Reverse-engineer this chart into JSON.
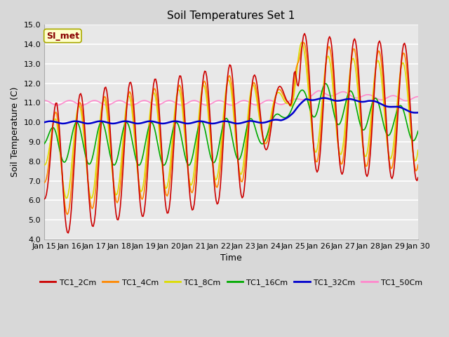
{
  "title": "Soil Temperatures Set 1",
  "xlabel": "Time",
  "ylabel": "Soil Temperature (C)",
  "ylim": [
    4.0,
    15.0
  ],
  "yticks": [
    4.0,
    5.0,
    6.0,
    7.0,
    8.0,
    9.0,
    10.0,
    11.0,
    12.0,
    13.0,
    14.0,
    15.0
  ],
  "xtick_labels": [
    "Jan 15",
    "Jan 16",
    "Jan 17",
    "Jan 18",
    "Jan 19",
    "Jan 20",
    "Jan 21",
    "Jan 22",
    "Jan 23",
    "Jan 24",
    "Jan 25",
    "Jan 26",
    "Jan 27",
    "Jan 28",
    "Jan 29",
    "Jan 30"
  ],
  "fig_bg_color": "#d8d8d8",
  "plot_bg_color": "#e8e8e8",
  "grid_color": "#ffffff",
  "annotation_label": "SI_met",
  "annotation_bg": "#ffffcc",
  "annotation_border": "#aaaa00",
  "annotation_text_color": "#880000",
  "colors": {
    "TC1_2Cm": "#cc0000",
    "TC1_4Cm": "#ff8800",
    "TC1_8Cm": "#dddd00",
    "TC1_16Cm": "#00aa00",
    "TC1_32Cm": "#0000cc",
    "TC1_50Cm": "#ff88cc"
  },
  "n_days": 15,
  "n_points": 360
}
